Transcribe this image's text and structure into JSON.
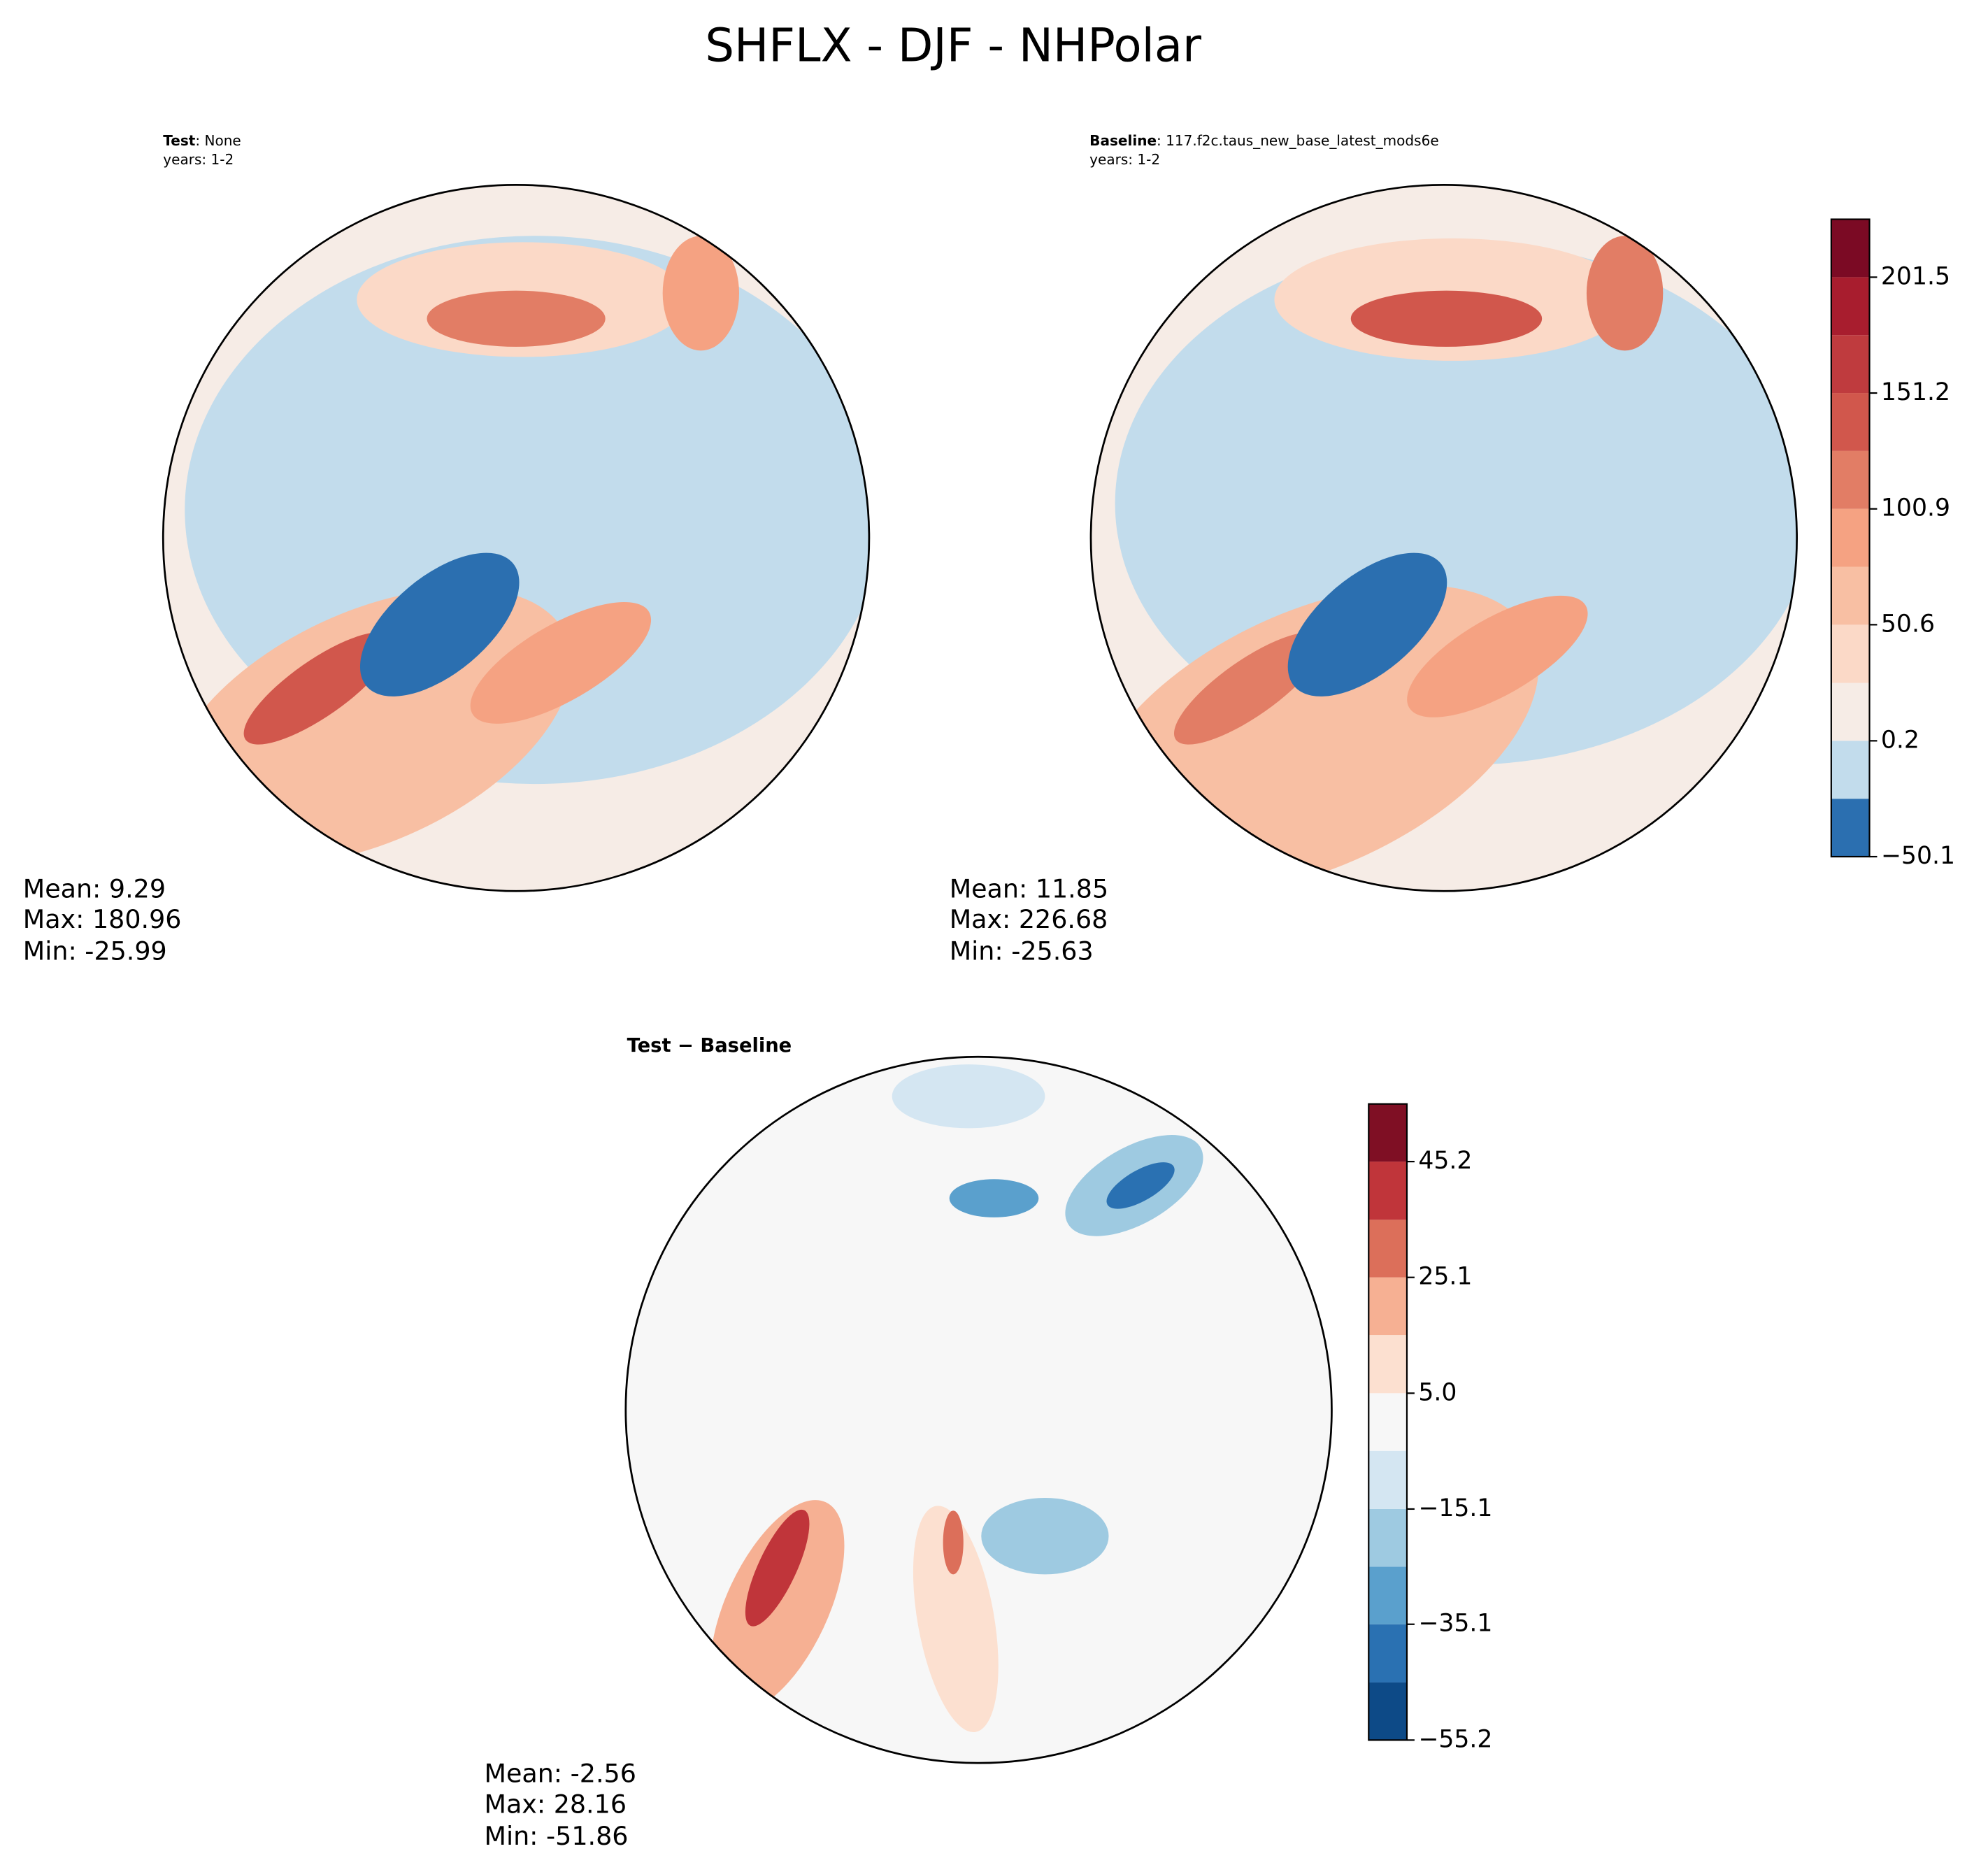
{
  "title": "SHFLX - DJF - NHPolar",
  "panels": [
    {
      "label_bold": "Test",
      "label_rest": ": None",
      "years": "years: 1-2",
      "stats": [
        "Mean:  9.29",
        "Max: 180.96",
        "Min: -25.99"
      ]
    },
    {
      "label_bold": "Baseline",
      "label_rest": ": 117.f2c.taus_new_base_latest_mods6e",
      "years": "years: 1-2",
      "stats": [
        "Mean: 11.85",
        "Max: 226.68",
        "Min: -25.63"
      ]
    },
    {
      "label": "Test − Baseline",
      "stats": [
        "Mean: -2.56",
        "Max: 28.16",
        "Min: -51.86"
      ]
    }
  ],
  "colorbars": [
    {
      "levels": [
        -50.1,
        -24.95,
        0.2,
        25.35,
        50.6,
        75.75,
        100.9,
        126.05,
        151.2,
        176.35,
        201.5,
        226.65
      ],
      "colors": [
        "#2b6fb0",
        "#c2dcec",
        "#f6ece6",
        "#fbd9c7",
        "#f8bfa3",
        "#f5a282",
        "#e27d65",
        "#d1574c",
        "#bf3b3e",
        "#a81d2e",
        "#7b0a24"
      ],
      "ticks": [
        {
          "value": -50.1,
          "label": "−50.1"
        },
        0.2,
        50.6,
        100.9,
        151.2,
        201.5
      ]
    },
    {
      "levels": [
        -55.2,
        -45.2,
        -35.1,
        -25.1,
        -15.1,
        -5.0,
        5.0,
        15.1,
        25.1,
        35.1,
        45.2,
        55.2
      ],
      "colors": [
        "#0d4a87",
        "#2a71b2",
        "#5aa0cd",
        "#9ecae1",
        "#d4e6f2",
        "#f7f7f7",
        "#fce0d0",
        "#f6b093",
        "#dc6f5a",
        "#c0353a",
        "#7f0f24"
      ],
      "ticks": [
        {
          "value": -55.2,
          "label": "−55.2"
        },
        {
          "value": -35.1,
          "label": "−35.1"
        },
        {
          "value": -15.1,
          "label": "−15.1"
        },
        {
          "value": 5.0,
          "label": "5.0"
        },
        25.1,
        45.2
      ]
    }
  ]
}
